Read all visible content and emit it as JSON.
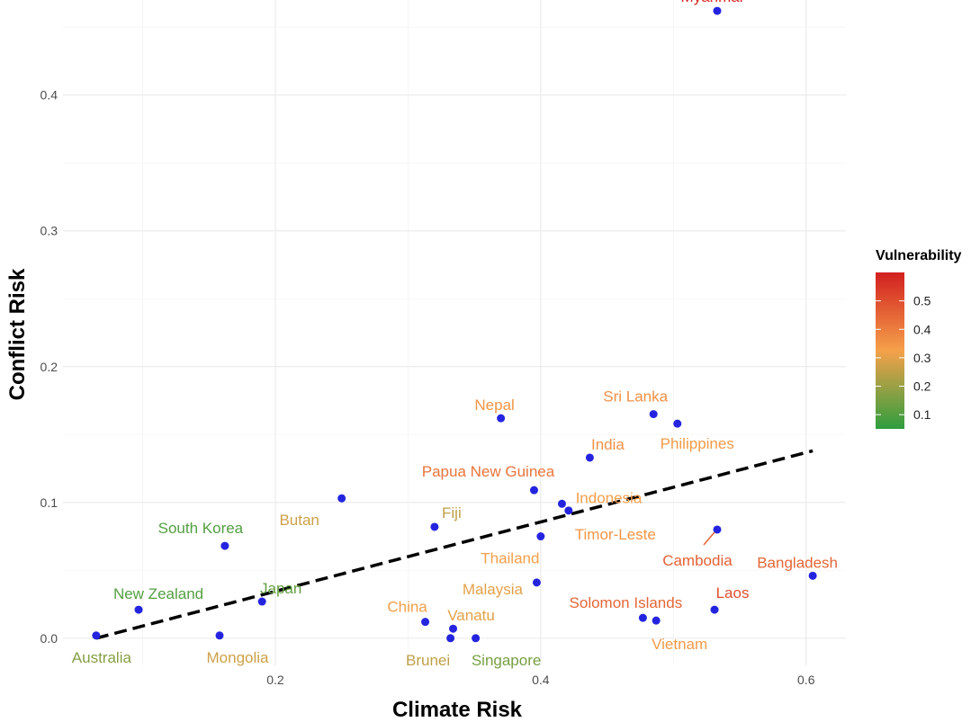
{
  "chart_data": {
    "type": "scatter",
    "xlabel": "Climate Risk",
    "ylabel": "Conflict Risk",
    "xlim": [
      0.04,
      0.63
    ],
    "ylim": [
      -0.02,
      0.47
    ],
    "x_ticks": [
      0.2,
      0.4,
      0.6
    ],
    "y_ticks": [
      0.0,
      0.1,
      0.2,
      0.3,
      0.4
    ],
    "x_tick_labels": [
      "0.2",
      "0.4",
      "0.6"
    ],
    "y_tick_labels": [
      "0.0",
      "0.1",
      "0.2",
      "0.3",
      "0.4"
    ],
    "grid": true,
    "point_color": "#2424e0",
    "trend_line": {
      "style": "dashed",
      "color": "#000000",
      "x": [
        0.065,
        0.605
      ],
      "y": [
        0.0,
        0.138
      ]
    },
    "legend": {
      "title": "Vulnerability",
      "placement": "right",
      "range": [
        0.05,
        0.6
      ],
      "ticks": [
        0.1,
        0.2,
        0.3,
        0.4,
        0.5
      ],
      "tick_labels": [
        "0.1",
        "0.2",
        "0.3",
        "0.4",
        "0.5"
      ],
      "colors": [
        "#2e9e3e",
        "#f5a14a",
        "#d21f1f"
      ]
    },
    "points": [
      {
        "label": "Myanmar",
        "x": 0.533,
        "y": 0.462,
        "vulnerability": 0.58
      },
      {
        "label": "Sri Lanka",
        "x": 0.485,
        "y": 0.165,
        "vulnerability": 0.36
      },
      {
        "label": "Philippines",
        "x": 0.503,
        "y": 0.158,
        "vulnerability": 0.34
      },
      {
        "label": "Nepal",
        "x": 0.37,
        "y": 0.162,
        "vulnerability": 0.35
      },
      {
        "label": "India",
        "x": 0.437,
        "y": 0.133,
        "vulnerability": 0.36
      },
      {
        "label": "Papua New Guinea",
        "x": 0.395,
        "y": 0.109,
        "vulnerability": 0.42
      },
      {
        "label": "Indonesia",
        "x": 0.416,
        "y": 0.099,
        "vulnerability": 0.33
      },
      {
        "label": "Timor-Leste",
        "x": 0.421,
        "y": 0.094,
        "vulnerability": 0.35
      },
      {
        "label": "Butan",
        "x": 0.25,
        "y": 0.103,
        "vulnerability": 0.27
      },
      {
        "label": "Fiji",
        "x": 0.32,
        "y": 0.082,
        "vulnerability": 0.25
      },
      {
        "label": "Thailand",
        "x": 0.4,
        "y": 0.075,
        "vulnerability": 0.33
      },
      {
        "label": "Cambodia",
        "x": 0.533,
        "y": 0.08,
        "vulnerability": 0.46
      },
      {
        "label": "Bangladesh",
        "x": 0.605,
        "y": 0.046,
        "vulnerability": 0.45
      },
      {
        "label": "South Korea",
        "x": 0.162,
        "y": 0.068,
        "vulnerability": 0.1
      },
      {
        "label": "Malaysia",
        "x": 0.397,
        "y": 0.041,
        "vulnerability": 0.3
      },
      {
        "label": "New Zealand",
        "x": 0.097,
        "y": 0.021,
        "vulnerability": 0.1
      },
      {
        "label": "Japan",
        "x": 0.19,
        "y": 0.027,
        "vulnerability": 0.12
      },
      {
        "label": "China",
        "x": 0.313,
        "y": 0.012,
        "vulnerability": 0.33
      },
      {
        "label": "Vanatu",
        "x": 0.334,
        "y": 0.007,
        "vulnerability": 0.3
      },
      {
        "label": "Solomon Islands",
        "x": 0.477,
        "y": 0.015,
        "vulnerability": 0.45
      },
      {
        "label": "Laos",
        "x": 0.531,
        "y": 0.021,
        "vulnerability": 0.5
      },
      {
        "label": "Vietnam",
        "x": 0.487,
        "y": 0.013,
        "vulnerability": 0.34
      },
      {
        "label": "Australia",
        "x": 0.065,
        "y": 0.002,
        "vulnerability": 0.17
      },
      {
        "label": "Mongolia",
        "x": 0.158,
        "y": 0.002,
        "vulnerability": 0.27
      },
      {
        "label": "Brunei",
        "x": 0.332,
        "y": 0.0,
        "vulnerability": 0.25
      },
      {
        "label": "Singapore",
        "x": 0.351,
        "y": 0.0,
        "vulnerability": 0.15
      }
    ]
  }
}
